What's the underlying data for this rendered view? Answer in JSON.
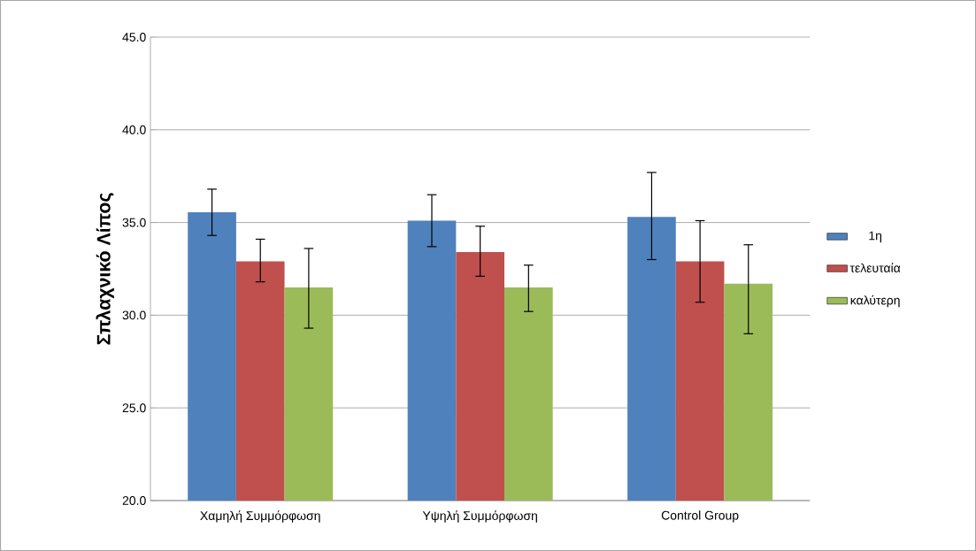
{
  "chart_data": {
    "type": "bar",
    "ylabel": "Σπλαχνικό Λίπος",
    "categories": [
      "Χαμηλή Συμμόρφωση",
      "Υψηλή Συμμόρφωση",
      "Control Group"
    ],
    "series": [
      {
        "name": "1η",
        "color": "#4f81bd",
        "values": [
          35.55,
          35.1,
          35.3
        ],
        "errors": [
          [
            34.3,
            36.8
          ],
          [
            33.7,
            36.5
          ],
          [
            33.0,
            37.7
          ]
        ]
      },
      {
        "name": "τελευταία",
        "color": "#c0504d",
        "values": [
          32.9,
          33.4,
          32.9
        ],
        "errors": [
          [
            31.8,
            34.1
          ],
          [
            32.1,
            34.8
          ],
          [
            30.7,
            35.1
          ]
        ]
      },
      {
        "name": "καλύτερη",
        "color": "#9bbb59",
        "values": [
          31.5,
          31.5,
          31.7
        ],
        "errors": [
          [
            29.3,
            33.6
          ],
          [
            30.2,
            32.7
          ],
          [
            29.0,
            33.8
          ]
        ]
      }
    ],
    "ylim": [
      20,
      45
    ],
    "yticks": [
      {
        "value": 20,
        "label": "20.0"
      },
      {
        "value": 25,
        "label": "25.0"
      },
      {
        "value": 30,
        "label": "30.0"
      },
      {
        "value": 35,
        "label": "35.0"
      },
      {
        "value": 40,
        "label": "40.0"
      },
      {
        "value": 45,
        "label": "45.0"
      }
    ],
    "grid": "y",
    "legend": "right"
  }
}
